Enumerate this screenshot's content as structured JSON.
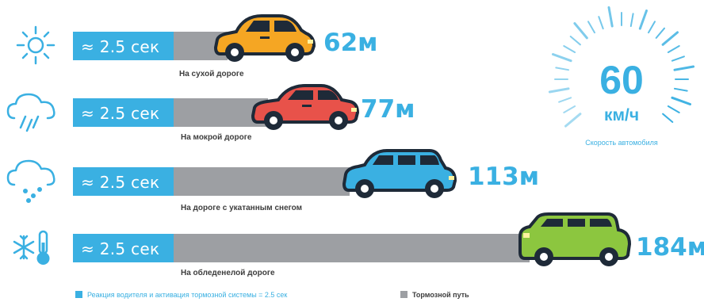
{
  "rows": [
    {
      "condition": "На сухой дороге",
      "reaction_label": "≈ 2.5 сек",
      "distance": "62м",
      "distance_m": 62,
      "icon": "sun-icon",
      "car_icon": "hatchback-car-icon",
      "car_color": "#f5a623"
    },
    {
      "condition": "На мокрой дороге",
      "reaction_label": "≈ 2.5 сек",
      "distance": "77м",
      "distance_m": 77,
      "icon": "rain-cloud-icon",
      "car_icon": "sedan-car-icon",
      "car_color": "#e8524a"
    },
    {
      "condition": "На дороге с укатанным снегом",
      "reaction_label": "≈ 2.5 сек",
      "distance": "113м",
      "distance_m": 113,
      "icon": "snow-cloud-icon",
      "car_icon": "station-wagon-car-icon",
      "car_color": "#3ab0e2"
    },
    {
      "condition": "На обледенелой дороге",
      "reaction_label": "≈ 2.5 сек",
      "distance": "184м",
      "distance_m": 184,
      "icon": "snowflake-thermometer-icon",
      "car_icon": "suv-car-icon",
      "car_color": "#8cc63f"
    }
  ],
  "speedometer": {
    "value": "60",
    "unit": "км/ч",
    "label": "Скорость автомобиля",
    "icon": "speedometer-gauge-icon"
  },
  "legend": {
    "reaction": "Реакция водителя и активация тормозной системы = 2.5 сек",
    "braking": "Тормозной путь"
  },
  "colors": {
    "reaction": "#3ab0e2",
    "braking": "#9d9fa3",
    "accent": "#3ab0e2"
  }
}
